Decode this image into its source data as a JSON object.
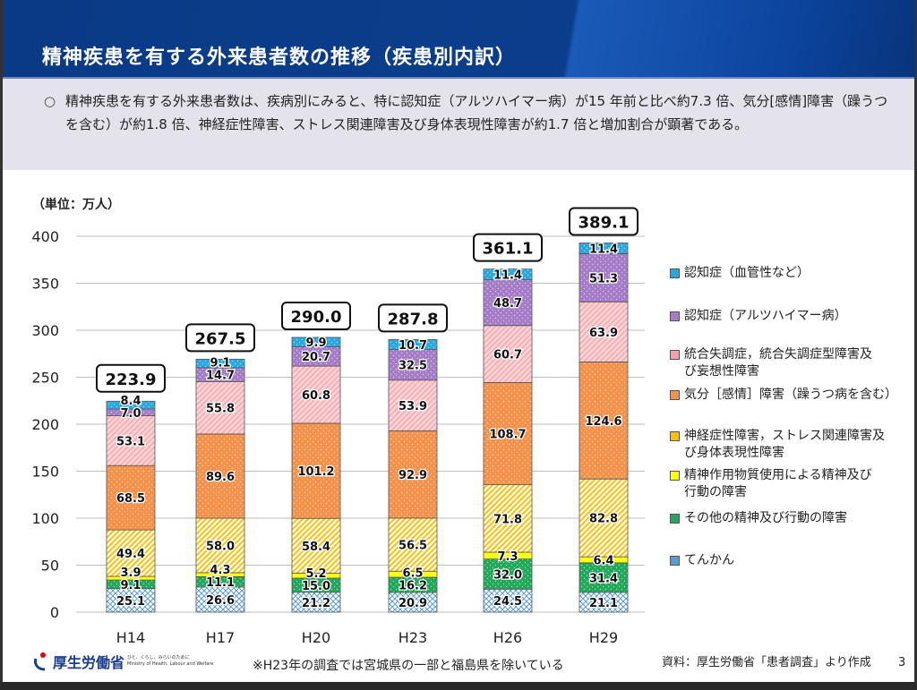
{
  "header": {
    "title": "精神疾患を有する外来患者数の推移（疾患別内訳）"
  },
  "summary": {
    "bullet": "○",
    "text": "精神疾患を有する外来患者数は、疾病別にみると、特に認知症（アルツハイマー病）が15 年前と比べ約7.3 倍、気分[感情]障害（躁うつを含む）が約1.8 倍、神経症性障害、ストレス関連障害及び身体表現性障害が約1.7 倍と増加割合が顕著である。"
  },
  "chart_data": {
    "type": "bar",
    "stacked": true,
    "unit_label": "（単位：万人）",
    "categories": [
      "H14",
      "H17",
      "H20",
      "H23",
      "H26",
      "H29"
    ],
    "ylim": [
      0,
      400
    ],
    "yticks": [
      0,
      50,
      100,
      150,
      200,
      250,
      300,
      350,
      400
    ],
    "grid": true,
    "legend": "right",
    "totals": [
      "223.9",
      "267.5",
      "290.0",
      "287.8",
      "361.1",
      "389.1"
    ],
    "series": [
      {
        "name": "てんかん",
        "color": "#5b9bd5",
        "values": [
          25.1,
          26.6,
          21.2,
          20.9,
          24.5,
          21.1
        ]
      },
      {
        "name": "その他の精神及び行動の障害",
        "color": "#22a85a",
        "values": [
          9.1,
          11.1,
          15.0,
          16.2,
          32.0,
          31.4
        ]
      },
      {
        "name": "精神作用物質使用による精神及び行動の障害",
        "color": "#ffff00",
        "values": [
          3.9,
          4.3,
          5.2,
          6.5,
          7.3,
          6.4
        ]
      },
      {
        "name": "神経症性障害，ストレス関連障害及び身体表現性障害",
        "color": "#ffc000",
        "values": [
          49.4,
          58.0,
          58.4,
          56.5,
          71.8,
          82.8
        ]
      },
      {
        "name": "気分［感情］障害（躁うつ病を含む）",
        "color": "#f4914a",
        "values": [
          68.5,
          89.6,
          101.2,
          92.9,
          108.7,
          124.6
        ]
      },
      {
        "name": "統合失調症，統合失調症型障害及び妄想性障害",
        "color": "#f4a0a6",
        "values": [
          53.1,
          55.8,
          60.8,
          53.9,
          60.7,
          63.9
        ]
      },
      {
        "name": "認知症（アルツハイマー病）",
        "color": "#a57cc8",
        "values": [
          7.0,
          14.7,
          20.7,
          32.5,
          48.7,
          51.3
        ]
      },
      {
        "name": "認知症（血管性など）",
        "color": "#29a8e0",
        "values": [
          8.4,
          9.1,
          9.9,
          10.7,
          11.4,
          11.4
        ]
      }
    ]
  },
  "legend_lines": [
    [
      "認知症（血管性など）"
    ],
    [
      "認知症（アルツハイマー病）"
    ],
    [
      "統合失調症，統合失調症型障害及",
      "び妄想性障害"
    ],
    [
      "気分［感情］障害（躁うつ病を含む）"
    ],
    [
      "神経症性障害，ストレス関連障害及",
      "び身体表現性障害"
    ],
    [
      "精神作用物質使用による精神及び",
      "行動の障害"
    ],
    [
      "その他の精神及び行動の障害"
    ],
    [
      "てんかん"
    ]
  ],
  "footer": {
    "logo": "厚生労働省",
    "logo_sub1": "ひと、くらし、みらいのために",
    "logo_sub2": "Ministry of Health, Labour and Welfare",
    "note": "※H23年の調査では宮城県の一部と福島県を除いている",
    "source": "資料：厚生労働省「患者調査」より作成",
    "page": "3"
  }
}
